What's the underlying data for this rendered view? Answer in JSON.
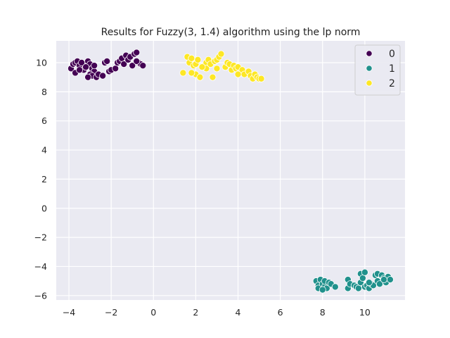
{
  "chart_data": {
    "type": "scatter",
    "title": "Results for Fuzzy(3, 1.4) algorithm using the lp norm",
    "xlabel": "",
    "ylabel": "",
    "xlim": [
      -4.6,
      11.9
    ],
    "ylim": [
      -6.3,
      11.5
    ],
    "xticks": [
      -4,
      -2,
      0,
      2,
      4,
      6,
      8,
      10
    ],
    "yticks": [
      -6,
      -4,
      -2,
      0,
      2,
      4,
      6,
      8,
      10
    ],
    "xtick_labels": [
      "−4",
      "−2",
      "0",
      "2",
      "4",
      "6",
      "8",
      "10"
    ],
    "ytick_labels": [
      "−6",
      "−4",
      "−2",
      "0",
      "2",
      "4",
      "6",
      "8",
      "10"
    ],
    "grid": true,
    "legend": {
      "position": "top-right",
      "entries": [
        "0",
        "1",
        "2"
      ]
    },
    "series": [
      {
        "name": "0",
        "color": "#440154",
        "points": [
          [
            -3.9,
            9.6
          ],
          [
            -3.8,
            9.9
          ],
          [
            -3.7,
            10.0
          ],
          [
            -3.6,
            10.1
          ],
          [
            -3.5,
            9.8
          ],
          [
            -3.4,
            10.0
          ],
          [
            -3.3,
            9.5
          ],
          [
            -3.7,
            9.3
          ],
          [
            -3.5,
            9.5
          ],
          [
            -3.1,
            10.1
          ],
          [
            -3.0,
            9.9
          ],
          [
            -2.9,
            9.6
          ],
          [
            -2.8,
            9.4
          ],
          [
            -3.0,
            9.2
          ],
          [
            -2.9,
            9.1
          ],
          [
            -3.1,
            9.0
          ],
          [
            -2.7,
            9.0
          ],
          [
            -2.6,
            9.2
          ],
          [
            -2.4,
            9.1
          ],
          [
            -2.3,
            10.0
          ],
          [
            -2.2,
            10.1
          ],
          [
            -2.1,
            9.4
          ],
          [
            -2.0,
            9.5
          ],
          [
            -1.8,
            9.6
          ],
          [
            -1.7,
            10.0
          ],
          [
            -1.6,
            10.1
          ],
          [
            -1.5,
            10.3
          ],
          [
            -1.4,
            9.9
          ],
          [
            -1.3,
            10.5
          ],
          [
            -1.2,
            10.2
          ],
          [
            -1.1,
            10.4
          ],
          [
            -1.0,
            9.8
          ],
          [
            -0.9,
            10.6
          ],
          [
            -0.8,
            10.7
          ],
          [
            -0.7,
            10.0
          ],
          [
            -0.6,
            9.9
          ],
          [
            -0.5,
            9.8
          ],
          [
            -0.8,
            10.1
          ],
          [
            -2.8,
            9.8
          ],
          [
            -3.2,
            9.7
          ]
        ]
      },
      {
        "name": "1",
        "color": "#21918c",
        "points": [
          [
            7.7,
            -5.0
          ],
          [
            7.8,
            -5.3
          ],
          [
            7.8,
            -5.5
          ],
          [
            7.9,
            -4.9
          ],
          [
            8.0,
            -5.2
          ],
          [
            8.1,
            -5.4
          ],
          [
            8.1,
            -5.0
          ],
          [
            8.2,
            -5.5
          ],
          [
            8.3,
            -5.1
          ],
          [
            8.4,
            -5.2
          ],
          [
            8.6,
            -5.4
          ],
          [
            9.2,
            -4.9
          ],
          [
            9.2,
            -5.5
          ],
          [
            9.3,
            -5.2
          ],
          [
            9.5,
            -5.3
          ],
          [
            9.6,
            -5.4
          ],
          [
            9.7,
            -5.5
          ],
          [
            9.8,
            -5.1
          ],
          [
            9.8,
            -4.5
          ],
          [
            9.9,
            -4.8
          ],
          [
            10.0,
            -4.4
          ],
          [
            10.0,
            -5.4
          ],
          [
            10.1,
            -5.3
          ],
          [
            10.2,
            -5.5
          ],
          [
            10.3,
            -5.2
          ],
          [
            10.4,
            -5.3
          ],
          [
            10.5,
            -4.6
          ],
          [
            10.6,
            -4.5
          ],
          [
            10.6,
            -5.0
          ],
          [
            10.7,
            -5.2
          ],
          [
            10.8,
            -4.6
          ],
          [
            10.9,
            -4.8
          ],
          [
            11.0,
            -5.1
          ],
          [
            11.1,
            -4.7
          ],
          [
            11.2,
            -4.9
          ],
          [
            10.9,
            -4.9
          ],
          [
            10.2,
            -5.1
          ],
          [
            8.0,
            -5.6
          ]
        ]
      },
      {
        "name": "2",
        "color": "#fde725",
        "points": [
          [
            1.4,
            9.3
          ],
          [
            1.6,
            10.4
          ],
          [
            1.7,
            10.0
          ],
          [
            1.8,
            10.3
          ],
          [
            1.9,
            9.8
          ],
          [
            2.0,
            9.2
          ],
          [
            2.0,
            9.9
          ],
          [
            2.1,
            10.2
          ],
          [
            2.2,
            9.0
          ],
          [
            2.4,
            9.8
          ],
          [
            2.5,
            10.0
          ],
          [
            2.5,
            9.6
          ],
          [
            2.6,
            10.2
          ],
          [
            2.7,
            9.9
          ],
          [
            2.8,
            9.0
          ],
          [
            2.9,
            10.1
          ],
          [
            3.0,
            10.2
          ],
          [
            3.0,
            9.6
          ],
          [
            3.1,
            10.4
          ],
          [
            3.2,
            10.6
          ],
          [
            3.4,
            9.7
          ],
          [
            3.5,
            10.0
          ],
          [
            3.6,
            9.9
          ],
          [
            3.7,
            9.5
          ],
          [
            3.8,
            9.8
          ],
          [
            3.9,
            9.6
          ],
          [
            4.0,
            9.7
          ],
          [
            4.1,
            9.3
          ],
          [
            4.2,
            9.5
          ],
          [
            4.3,
            9.2
          ],
          [
            4.5,
            9.4
          ],
          [
            4.6,
            9.1
          ],
          [
            4.7,
            8.9
          ],
          [
            4.8,
            9.2
          ],
          [
            4.9,
            9.0
          ],
          [
            5.0,
            8.9
          ],
          [
            5.1,
            8.9
          ],
          [
            1.8,
            9.3
          ],
          [
            2.3,
            9.7
          ],
          [
            4.0,
            9.2
          ]
        ]
      }
    ]
  }
}
